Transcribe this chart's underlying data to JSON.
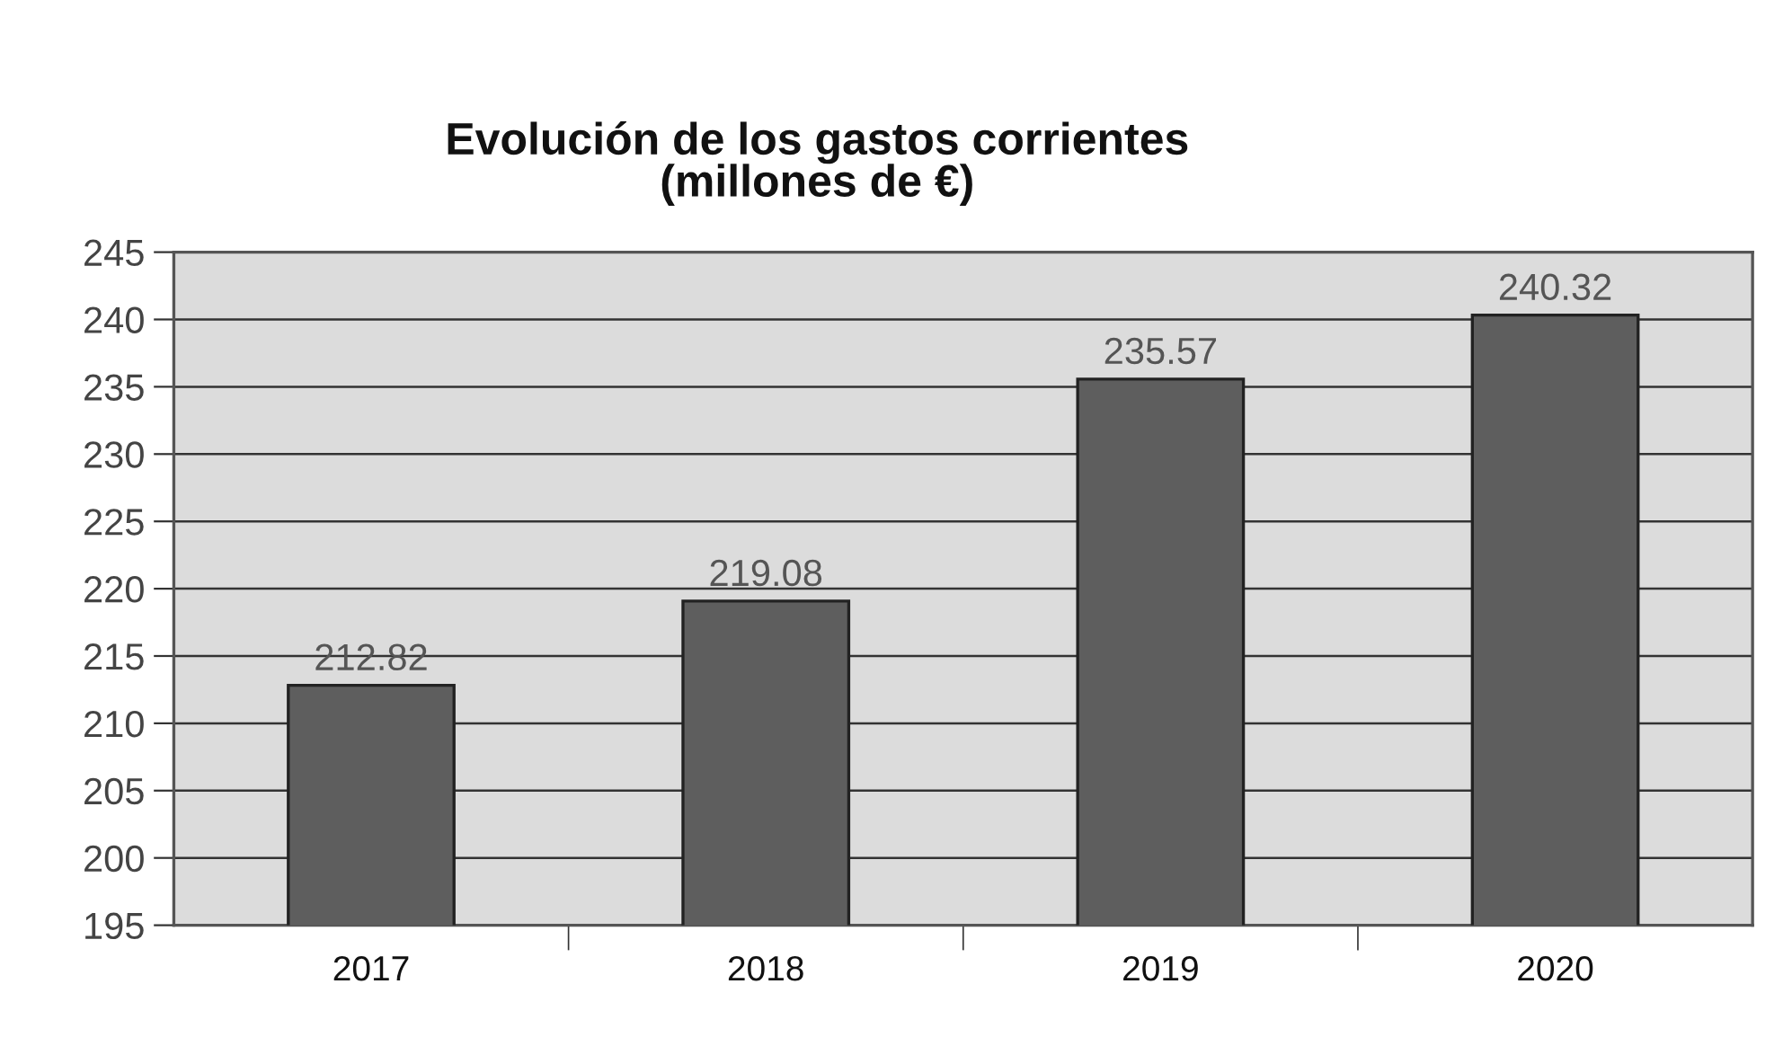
{
  "chart_data": {
    "type": "bar",
    "title": "Evolución de los gastos corrientes\n(millones de €)",
    "categories": [
      "2017",
      "2018",
      "2019",
      "2020"
    ],
    "values": [
      212.82,
      219.08,
      235.57,
      240.32
    ],
    "color": "#5e5e5e",
    "ylim": [
      195,
      245
    ],
    "yticks": [
      195,
      200,
      205,
      210,
      215,
      220,
      225,
      230,
      235,
      240,
      245
    ],
    "grid": "y",
    "data_labels": true
  }
}
